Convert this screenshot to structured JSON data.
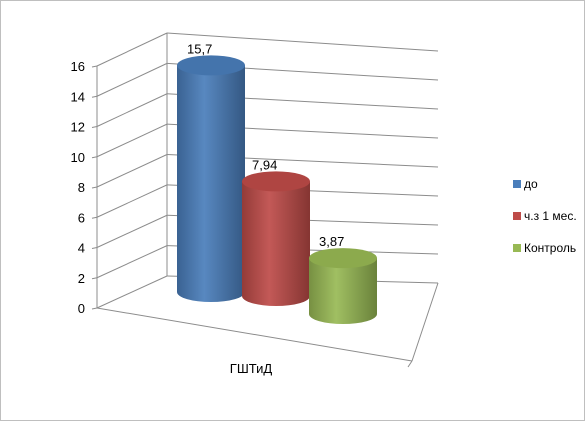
{
  "chart_data": {
    "type": "bar",
    "style": "3d-cylinder",
    "title": "",
    "xlabel": "",
    "ylabel": "",
    "categories": [
      "ГШТиД"
    ],
    "series": [
      {
        "name": "до",
        "values": [
          15.7
        ],
        "label": "15,7",
        "color": "#4a7ebb"
      },
      {
        "name": "ч.з 1 мес.",
        "values": [
          7.94
        ],
        "label": "7,94",
        "color": "#be4b48"
      },
      {
        "name": "Контроль",
        "values": [
          3.87
        ],
        "label": "3,87",
        "color": "#98b954"
      }
    ],
    "ylim": [
      0,
      16
    ],
    "yticks": [
      "0",
      "2",
      "4",
      "6",
      "8",
      "10",
      "12",
      "14",
      "16"
    ],
    "grid": true,
    "legend_position": "right"
  }
}
